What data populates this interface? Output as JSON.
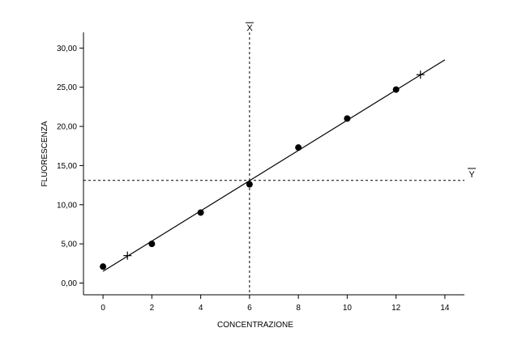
{
  "chart_data": {
    "type": "scatter",
    "title": "",
    "xlabel": "CONCENTRAZIONE",
    "ylabel": "FLUORESCENZA",
    "xlim": [
      -0.8,
      14.8
    ],
    "ylim": [
      -1.5,
      32.0
    ],
    "x_ticks": [
      0,
      2,
      4,
      6,
      8,
      10,
      12,
      14
    ],
    "x_tick_labels": [
      "0",
      "2",
      "4",
      "6",
      "8",
      "10",
      "12",
      "14"
    ],
    "y_ticks": [
      0,
      5,
      10,
      15,
      20,
      25,
      30
    ],
    "y_tick_labels": [
      "0,00",
      "5,00",
      "10,00",
      "15,00",
      "20,00",
      "25,00",
      "30,00"
    ],
    "grid": false,
    "legend": "none",
    "points": [
      {
        "x": 0,
        "y": 2.1
      },
      {
        "x": 2,
        "y": 5.0
      },
      {
        "x": 4,
        "y": 9.0
      },
      {
        "x": 6,
        "y": 12.6
      },
      {
        "x": 8,
        "y": 17.3
      },
      {
        "x": 10,
        "y": 21.0
      },
      {
        "x": 12,
        "y": 24.7
      }
    ],
    "fit_line": {
      "x0": 0,
      "y0": 1.5,
      "x1": 14,
      "y1": 28.5
    },
    "cross_points": [
      {
        "x": 1,
        "y": 3.5
      },
      {
        "x": 13,
        "y": 26.6
      }
    ],
    "mean_x": 6,
    "mean_y": 13.1,
    "mean_x_label": "X",
    "mean_y_label": "Y"
  }
}
